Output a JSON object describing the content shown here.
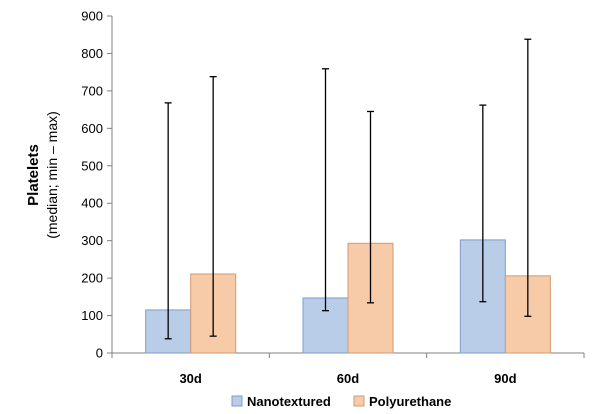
{
  "chart_data": {
    "type": "bar",
    "title": "",
    "xlabel": "",
    "ylabel": "Platelets",
    "ylabel_sub": "(median;  min – max)",
    "ylim": [
      0,
      900
    ],
    "yticks": [
      0,
      100,
      200,
      300,
      400,
      500,
      600,
      700,
      800,
      900
    ],
    "categories": [
      "30d",
      "60d",
      "90d"
    ],
    "grid": false,
    "legend_position": "bottom",
    "series": [
      {
        "name": "Nanotextured",
        "color": "#b9cde9",
        "edge_color": "#7e9ccb",
        "values": [
          115,
          147,
          302
        ],
        "min": [
          38,
          113,
          137
        ],
        "max": [
          668,
          759,
          662
        ]
      },
      {
        "name": "Polyurethane",
        "color": "#f8cba8",
        "edge_color": "#d29a74",
        "values": [
          211,
          293,
          206
        ],
        "min": [
          45,
          134,
          98
        ],
        "max": [
          738,
          645,
          838
        ]
      }
    ]
  }
}
